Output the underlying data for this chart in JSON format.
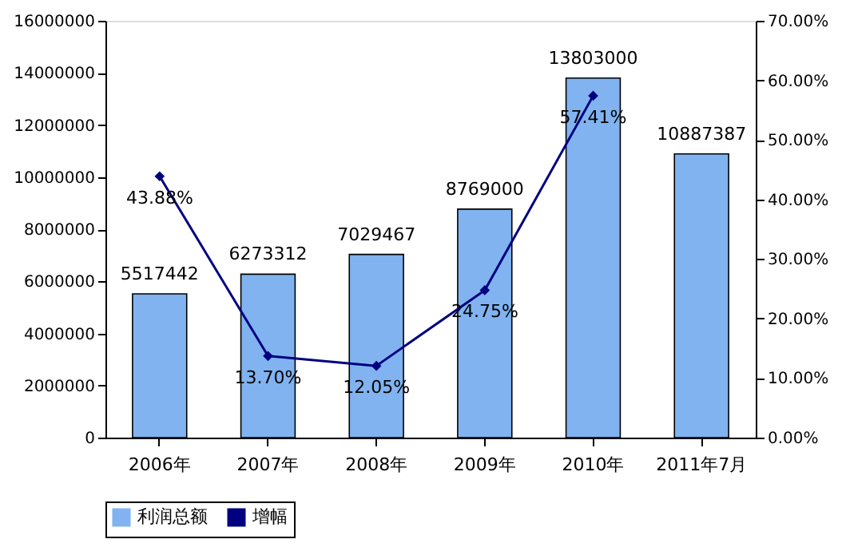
{
  "chart_data": {
    "type": "bar",
    "categories": [
      "2006年",
      "2007年",
      "2008年",
      "2009年",
      "2010年",
      "2011年7月"
    ],
    "series": [
      {
        "name": "利润总额",
        "color": "#80b3f0",
        "values": [
          5517442,
          6273312,
          7029467,
          8769000,
          13803000,
          10887387
        ],
        "value_labels": [
          "5517442",
          "6273312",
          "7029467",
          "8769000",
          "13803000",
          "10887387"
        ]
      },
      {
        "name": "增幅",
        "type": "line",
        "axis": "y2",
        "color": "#000080",
        "marker": "diamond",
        "line_style": "solid",
        "values": [
          43.88,
          13.7,
          12.05,
          24.75,
          57.41,
          null
        ],
        "value_labels": [
          "43.88%",
          "13.70%",
          "12.05%",
          "24.75%",
          "57.41%",
          null
        ]
      }
    ],
    "ylim": [
      0,
      16000000
    ],
    "yticks": [
      0,
      2000000,
      4000000,
      6000000,
      8000000,
      10000000,
      12000000,
      14000000,
      16000000
    ],
    "y2lim": [
      0,
      70
    ],
    "y2ticks": [
      {
        "value": 0,
        "label": "0.00%"
      },
      {
        "value": 10,
        "label": "10.00%"
      },
      {
        "value": 20,
        "label": "20.00%"
      },
      {
        "value": 30,
        "label": "30.00%"
      },
      {
        "value": 40,
        "label": "40.00%"
      },
      {
        "value": 50,
        "label": "50.00%"
      },
      {
        "value": 60,
        "label": "60.00%"
      },
      {
        "value": 70,
        "label": "70.00%"
      }
    ],
    "legend": "bottom"
  }
}
